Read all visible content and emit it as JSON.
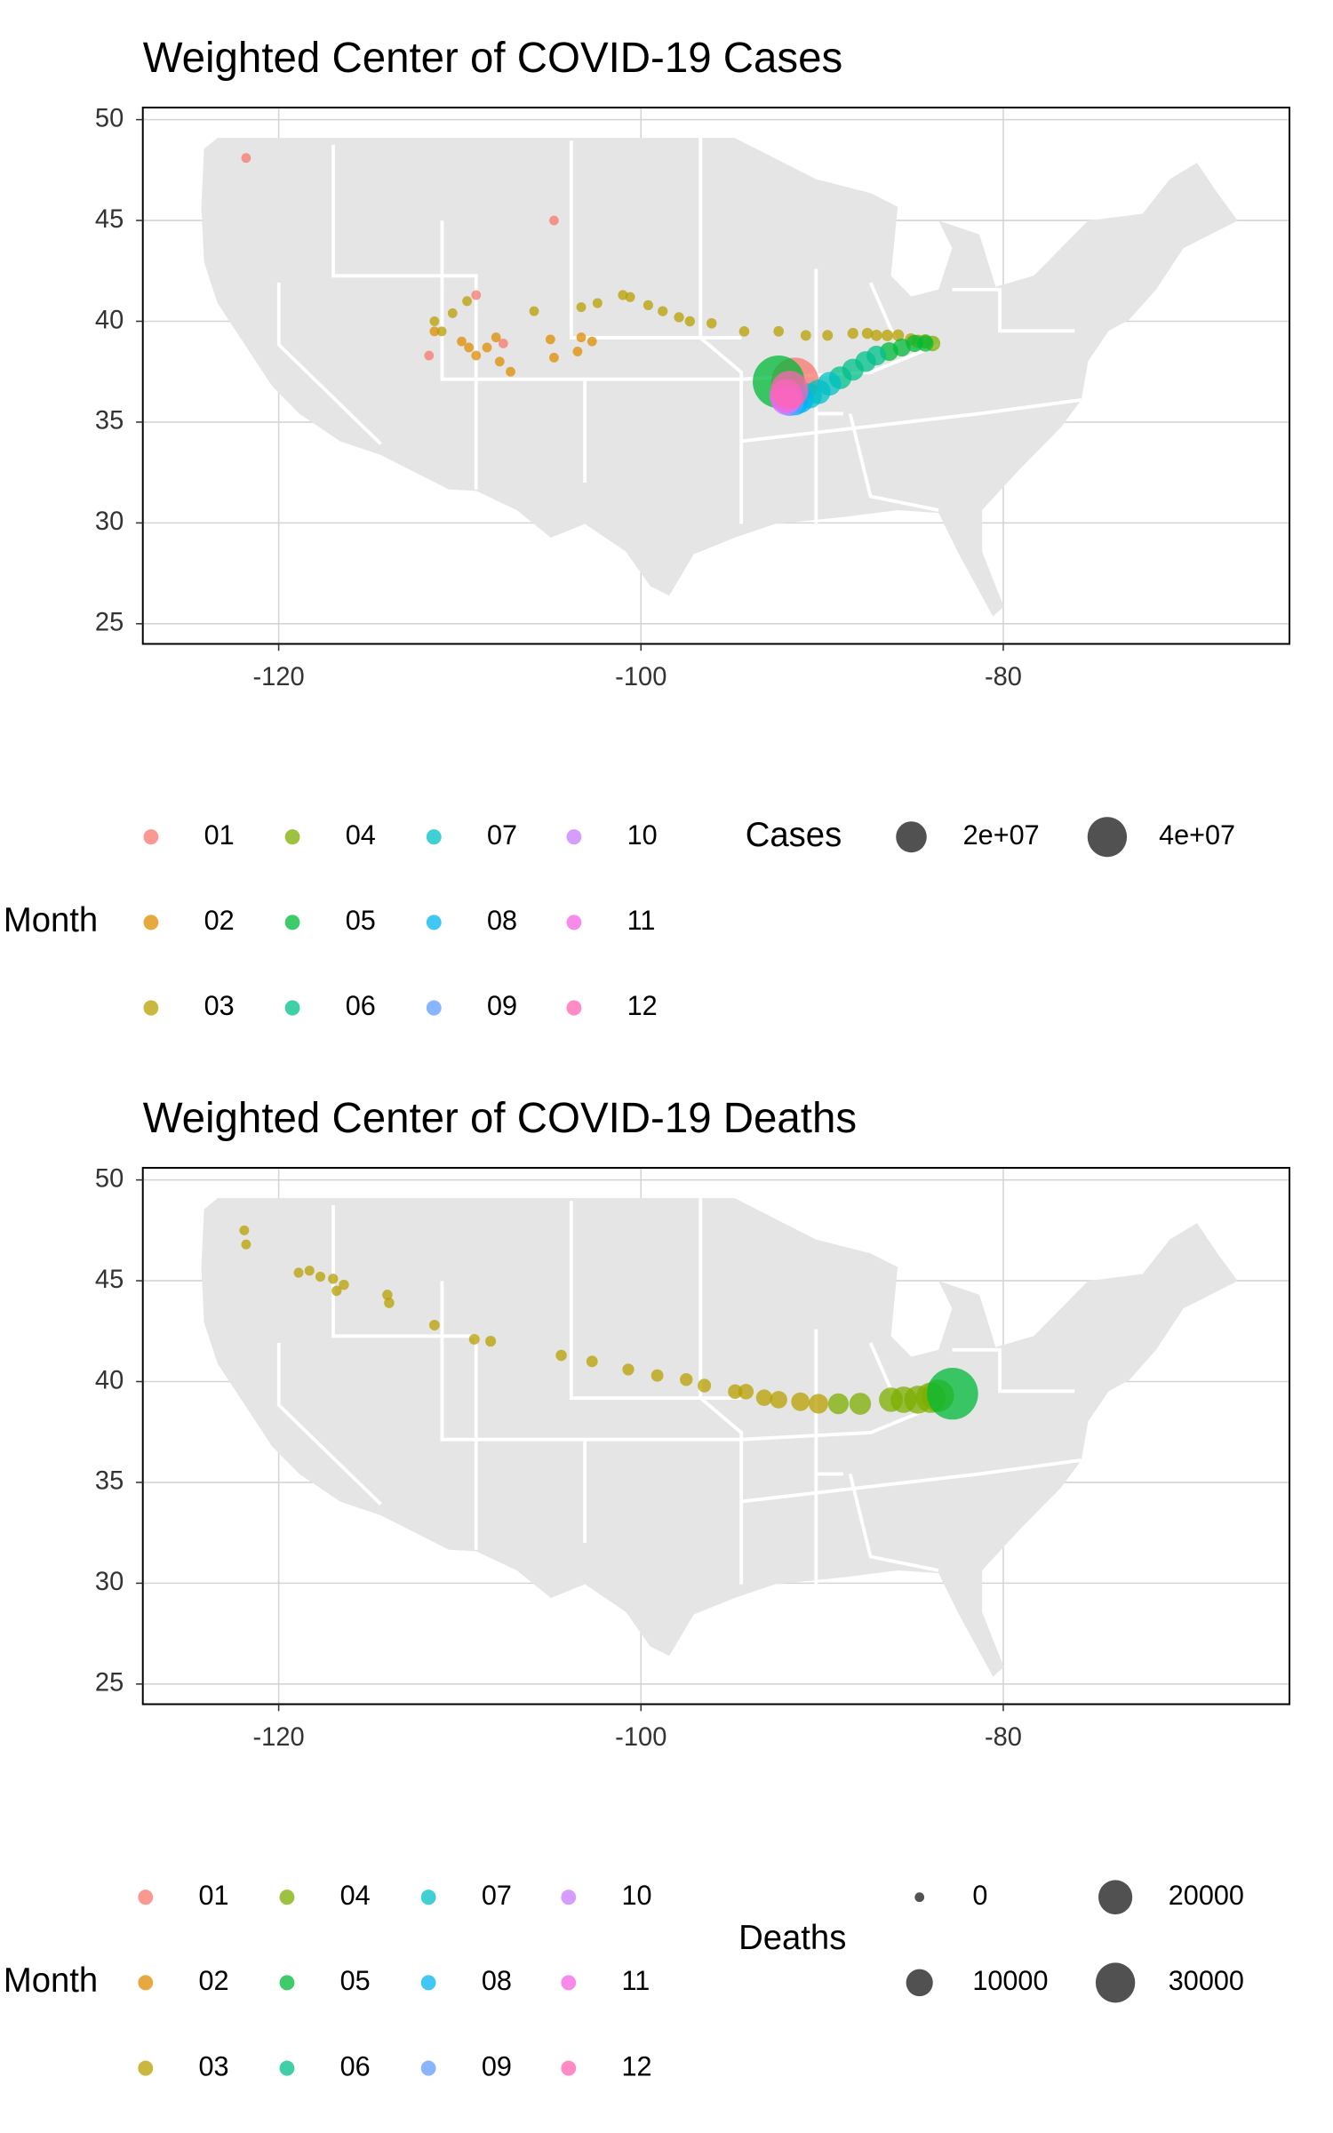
{
  "chart_data": [
    {
      "type": "scatter",
      "title": "Weighted Center of COVID-19 Cases",
      "xlim": [
        -127.5,
        -64.2
      ],
      "ylim": [
        24.0,
        50.6
      ],
      "xticks": [
        -120,
        -100,
        -80
      ],
      "yticks": [
        25,
        30,
        35,
        40,
        45,
        50
      ],
      "grid": true,
      "legend_title": "Month",
      "size_legend": {
        "title": "Cases",
        "values": [
          {
            "value": 20000000,
            "label": "2e+07"
          },
          {
            "value": 40000000,
            "label": "4e+07"
          }
        ]
      },
      "series": [
        {
          "name": "01",
          "color": "#F8766D",
          "x": [
            -121.8,
            -104.8,
            -109.1,
            -111.7,
            -107.6,
            -91.5
          ],
          "y": [
            48.1,
            45.0,
            41.3,
            38.3,
            38.9,
            37.0
          ],
          "sizes": [
            1,
            5,
            10,
            20,
            30,
            65000000
          ]
        },
        {
          "name": "02",
          "color": "#DE8C00",
          "x": [
            -111.4,
            -109.9,
            -109.5,
            -109.1,
            -108.5,
            -107.8,
            -107.2,
            -108.0,
            -105.0,
            -104.8,
            -103.5,
            -103.3,
            -102.7
          ],
          "y": [
            39.5,
            39.0,
            38.7,
            38.3,
            38.7,
            38.0,
            37.5,
            39.2,
            39.1,
            38.2,
            38.5,
            39.2,
            39.0
          ],
          "sizes": [
            50,
            60,
            70,
            80,
            90,
            100,
            120,
            140,
            160,
            180,
            200,
            250,
            300
          ]
        },
        {
          "name": "03",
          "color": "#B79F00",
          "x": [
            -111.4,
            -111.0,
            -110.4,
            -109.6,
            -105.9,
            -103.3,
            -102.4,
            -101.0,
            -100.6,
            -99.6,
            -98.8,
            -97.9,
            -97.3,
            -96.1,
            -94.3,
            -92.4,
            -90.9,
            -89.7,
            -88.3,
            -87.5,
            -87.0,
            -86.4,
            -85.8,
            -85.1
          ],
          "y": [
            40.0,
            39.5,
            40.4,
            41.0,
            40.5,
            40.7,
            40.9,
            41.3,
            41.2,
            40.8,
            40.5,
            40.2,
            40.0,
            39.9,
            39.5,
            39.5,
            39.3,
            39.3,
            39.4,
            39.4,
            39.3,
            39.3,
            39.3,
            39.1
          ],
          "sizes": [
            400,
            500,
            600,
            800,
            1000,
            1500,
            2000,
            3000,
            4000,
            6000,
            8000,
            11000,
            15000,
            20000,
            27000,
            35000,
            46000,
            60000,
            80000,
            100000,
            130000,
            170000,
            220000,
            300000
          ]
        },
        {
          "name": "04",
          "color": "#7CAE00",
          "x": [
            -84.7,
            -84.3,
            -83.9
          ],
          "y": [
            39.0,
            39.0,
            38.9
          ],
          "sizes": [
            600000,
            1000000,
            1500000
          ]
        },
        {
          "name": "05",
          "color": "#00BA38",
          "x": [
            -84.3,
            -84.9,
            -85.6,
            -86.3,
            -92.4
          ],
          "y": [
            38.9,
            38.9,
            38.7,
            38.5,
            37.0
          ],
          "sizes": [
            2000000,
            2500000,
            3000000,
            3500000,
            80000000
          ]
        },
        {
          "name": "06",
          "color": "#00C08B",
          "x": [
            -87.0,
            -87.6,
            -88.3,
            -89.0
          ],
          "y": [
            38.3,
            38.0,
            37.6,
            37.2
          ],
          "sizes": [
            4500000,
            5500000,
            6500000,
            7500000
          ]
        },
        {
          "name": "07",
          "color": "#00BFC4",
          "x": [
            -89.6,
            -90.2,
            -90.7
          ],
          "y": [
            36.9,
            36.5,
            36.3
          ],
          "sizes": [
            8500000,
            9500000,
            10500000
          ]
        },
        {
          "name": "08",
          "color": "#00B4F0",
          "x": [
            -91.2,
            -91.5
          ],
          "y": [
            36.1,
            36.0
          ],
          "sizes": [
            12000000,
            13000000
          ]
        },
        {
          "name": "09",
          "color": "#619CFF",
          "x": [
            -91.8
          ],
          "y": [
            36.0
          ],
          "sizes": [
            15000000
          ]
        },
        {
          "name": "10",
          "color": "#C77CFF",
          "x": [
            -92.0
          ],
          "y": [
            36.1
          ],
          "sizes": [
            18000000
          ]
        },
        {
          "name": "11",
          "color": "#F564E3",
          "x": [
            -92.0
          ],
          "y": [
            36.3
          ],
          "sizes": [
            25000000
          ]
        },
        {
          "name": "12",
          "color": "#FF64B0",
          "x": [
            -91.8
          ],
          "y": [
            36.6
          ],
          "sizes": [
            35000000
          ]
        }
      ]
    },
    {
      "type": "scatter",
      "title": "Weighted Center of COVID-19 Deaths",
      "xlim": [
        -127.5,
        -64.2
      ],
      "ylim": [
        24.0,
        50.6
      ],
      "xticks": [
        -120,
        -100,
        -80
      ],
      "yticks": [
        25,
        30,
        35,
        40,
        45,
        50
      ],
      "grid": true,
      "legend_title": "Month",
      "size_legend": {
        "title": "Deaths",
        "values": [
          0,
          10000,
          20000,
          30000
        ]
      },
      "series": [
        {
          "name": "01",
          "color": "#F8766D",
          "x": [],
          "y": [],
          "sizes": []
        },
        {
          "name": "02",
          "color": "#DE8C00",
          "x": [],
          "y": [],
          "sizes": []
        },
        {
          "name": "03",
          "color": "#B79F00",
          "x": [
            -121.9,
            -121.8,
            -118.9,
            -118.3,
            -117.7,
            -117.0,
            -116.8,
            -116.4,
            -114.0,
            -113.9,
            -111.4,
            -109.2,
            -108.3,
            -104.4,
            -102.7,
            -100.7,
            -99.1,
            -97.5,
            -96.5,
            -94.8,
            -94.2,
            -93.2,
            -92.4,
            -91.2,
            -90.2
          ],
          "y": [
            47.5,
            46.8,
            45.4,
            45.5,
            45.2,
            45.1,
            44.5,
            44.8,
            44.3,
            43.9,
            42.8,
            42.1,
            42.0,
            41.3,
            41.0,
            40.6,
            40.3,
            40.1,
            39.8,
            39.5,
            39.5,
            39.2,
            39.1,
            39.0,
            38.9
          ],
          "sizes": [
            1,
            1,
            2,
            3,
            5,
            8,
            10,
            12,
            15,
            20,
            30,
            40,
            50,
            80,
            120,
            170,
            250,
            350,
            500,
            800,
            1100,
            1500,
            2000,
            2600,
            3300
          ]
        },
        {
          "name": "04",
          "color": "#7CAE00",
          "x": [
            -89.1,
            -87.9,
            -86.2,
            -85.5,
            -84.7,
            -84.0,
            -83.6
          ],
          "y": [
            38.9,
            38.9,
            39.1,
            39.1,
            39.1,
            39.2,
            39.3
          ],
          "sizes": [
            4100,
            5000,
            7000,
            9000,
            11000,
            14000,
            17000
          ]
        },
        {
          "name": "05",
          "color": "#00BA38",
          "x": [
            -82.8
          ],
          "y": [
            39.4
          ],
          "sizes": [
            58000
          ]
        },
        {
          "name": "06",
          "color": "#00C08B",
          "x": [],
          "y": [],
          "sizes": []
        },
        {
          "name": "07",
          "color": "#00BFC4",
          "x": [],
          "y": [],
          "sizes": []
        },
        {
          "name": "08",
          "color": "#00B4F0",
          "x": [],
          "y": [],
          "sizes": []
        },
        {
          "name": "09",
          "color": "#619CFF",
          "x": [],
          "y": [],
          "sizes": []
        },
        {
          "name": "10",
          "color": "#C77CFF",
          "x": [],
          "y": [],
          "sizes": []
        },
        {
          "name": "11",
          "color": "#F564E3",
          "x": [],
          "y": [],
          "sizes": []
        },
        {
          "name": "12",
          "color": "#FF64B0",
          "x": [],
          "y": [],
          "sizes": []
        }
      ]
    }
  ]
}
